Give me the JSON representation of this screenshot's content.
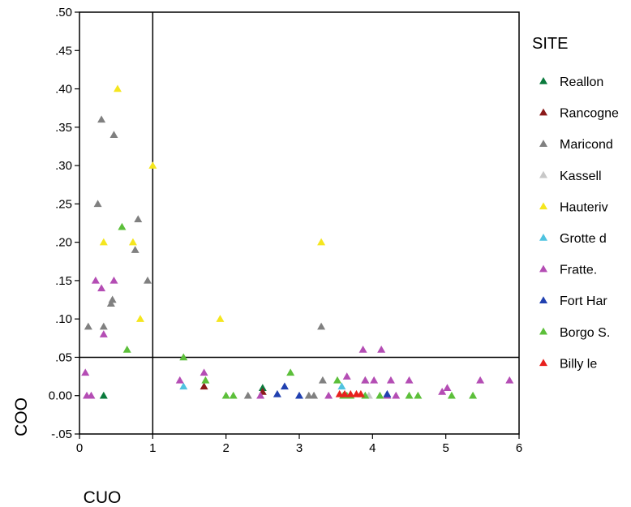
{
  "chart_data": {
    "type": "scatter",
    "xlabel": "CUO",
    "ylabel": "COO",
    "xlim": [
      0,
      6
    ],
    "ylim": [
      -0.05,
      0.5
    ],
    "xticks": [
      0,
      1,
      2,
      3,
      4,
      5,
      6
    ],
    "xtick_labels": [
      "0",
      "1",
      "2",
      "3",
      "4",
      "5",
      "6"
    ],
    "yticks": [
      0.5,
      0.45,
      0.4,
      0.35,
      0.3,
      0.25,
      0.2,
      0.15,
      0.1,
      0.05,
      0.0,
      -0.05
    ],
    "ytick_labels": [
      ".50",
      ".45",
      ".40",
      ".35",
      ".30",
      ".25",
      ".20",
      ".15",
      ".10",
      ".05",
      "0.00",
      "-.05"
    ],
    "reference_lines": {
      "x": 1,
      "y": 0.05
    },
    "grid": false,
    "legend": {
      "title": "SITE",
      "position": "right"
    },
    "marker": "triangle",
    "series": [
      {
        "name": "Reallon",
        "color": "#0a7a3c",
        "points": [
          [
            0.33,
            0.0
          ],
          [
            2.5,
            0.01
          ]
        ]
      },
      {
        "name": "Rancogne",
        "color": "#8b1a1a",
        "points": [
          [
            1.7,
            0.012
          ],
          [
            2.5,
            0.005
          ]
        ]
      },
      {
        "name": "Maricond",
        "color": "#808080",
        "points": [
          [
            0.12,
            0.09
          ],
          [
            0.25,
            0.25
          ],
          [
            0.3,
            0.36
          ],
          [
            0.33,
            0.09
          ],
          [
            0.43,
            0.12
          ],
          [
            0.45,
            0.125
          ],
          [
            0.47,
            0.34
          ],
          [
            0.76,
            0.19
          ],
          [
            0.8,
            0.23
          ],
          [
            0.93,
            0.15
          ],
          [
            3.3,
            0.09
          ],
          [
            3.32,
            0.02
          ],
          [
            3.13,
            0.0
          ],
          [
            3.2,
            0.0
          ],
          [
            3.9,
            0.02
          ],
          [
            2.3,
            0.0
          ]
        ]
      },
      {
        "name": "Kassell",
        "color": "#c8c8c8",
        "points": [
          [
            3.95,
            0.0
          ],
          [
            4.2,
            0.0
          ]
        ]
      },
      {
        "name": "Hauteriv",
        "color": "#f5e61e",
        "points": [
          [
            0.52,
            0.4
          ],
          [
            1.0,
            0.3
          ],
          [
            0.33,
            0.2
          ],
          [
            0.73,
            0.2
          ],
          [
            0.83,
            0.1
          ],
          [
            1.92,
            0.1
          ],
          [
            3.3,
            0.2
          ]
        ]
      },
      {
        "name": "Grotte d",
        "color": "#4fc3e0",
        "points": [
          [
            1.42,
            0.012
          ],
          [
            3.58,
            0.012
          ]
        ]
      },
      {
        "name": "Fratte.",
        "color": "#b44db4",
        "points": [
          [
            0.08,
            0.03
          ],
          [
            0.1,
            0.0
          ],
          [
            0.16,
            0.0
          ],
          [
            0.22,
            0.15
          ],
          [
            0.3,
            0.14
          ],
          [
            0.33,
            0.08
          ],
          [
            0.47,
            0.15
          ],
          [
            1.37,
            0.02
          ],
          [
            1.7,
            0.03
          ],
          [
            2.47,
            0.0
          ],
          [
            3.4,
            0.0
          ],
          [
            3.65,
            0.025
          ],
          [
            3.87,
            0.06
          ],
          [
            3.9,
            0.02
          ],
          [
            4.02,
            0.02
          ],
          [
            4.12,
            0.06
          ],
          [
            4.25,
            0.02
          ],
          [
            4.32,
            0.0
          ],
          [
            4.5,
            0.02
          ],
          [
            4.95,
            0.005
          ],
          [
            5.02,
            0.01
          ],
          [
            5.47,
            0.02
          ],
          [
            5.87,
            0.02
          ],
          [
            4.2,
            0.0
          ]
        ]
      },
      {
        "name": "Fort Har",
        "color": "#2040b0",
        "points": [
          [
            2.7,
            0.002
          ],
          [
            2.8,
            0.012
          ],
          [
            3.0,
            0.0
          ],
          [
            4.2,
            0.002
          ]
        ]
      },
      {
        "name": "Borgo S.",
        "color": "#5cbf3a",
        "points": [
          [
            0.58,
            0.22
          ],
          [
            0.65,
            0.06
          ],
          [
            1.42,
            0.05
          ],
          [
            1.72,
            0.02
          ],
          [
            2.0,
            0.0
          ],
          [
            2.1,
            0.0
          ],
          [
            2.88,
            0.03
          ],
          [
            3.52,
            0.02
          ],
          [
            3.6,
            0.0
          ],
          [
            3.7,
            0.0
          ],
          [
            3.9,
            0.0
          ],
          [
            4.1,
            0.0
          ],
          [
            4.5,
            0.0
          ],
          [
            4.62,
            0.0
          ],
          [
            5.08,
            0.0
          ],
          [
            5.37,
            0.0
          ],
          [
            3.65,
            0.0
          ]
        ]
      },
      {
        "name": "Billy le",
        "color": "#e8201e",
        "points": [
          [
            3.55,
            0.002
          ],
          [
            3.62,
            0.002
          ],
          [
            3.7,
            0.002
          ],
          [
            3.78,
            0.002
          ],
          [
            3.84,
            0.002
          ]
        ]
      }
    ]
  }
}
